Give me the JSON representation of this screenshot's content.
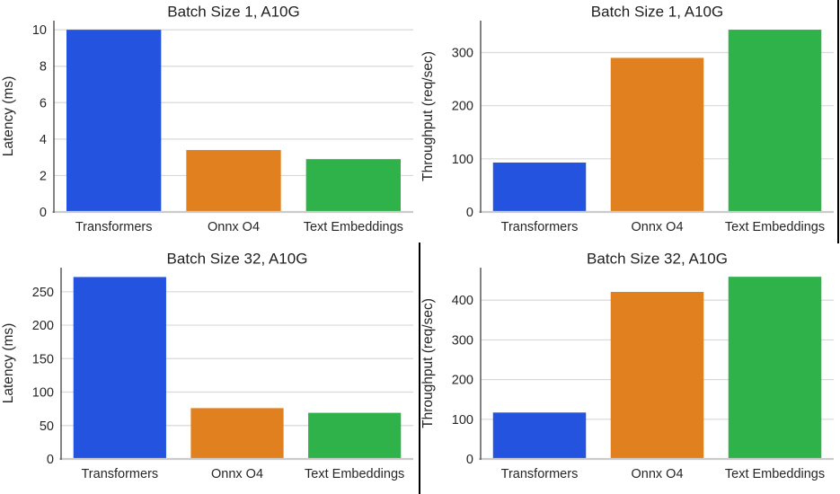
{
  "figure": {
    "categories": [
      "Transformers",
      "Onnx O4",
      "Text Embeddings"
    ],
    "palette": [
      "#2453e0",
      "#e0801f",
      "#2fb24a"
    ],
    "grid_color": "#d9d9d9",
    "baseline_color": "#cbcbcb",
    "spine_color": "#404040",
    "text_color": "#262626",
    "title_color": "#1f1f1f",
    "divider_color": "#000000"
  },
  "chart_data": [
    {
      "type": "bar",
      "title": "Batch Size 1, A10G",
      "xlabel": "",
      "ylabel": "Latency (ms)",
      "categories": [
        "Transformers",
        "Onnx O4",
        "Text Embeddings"
      ],
      "values": [
        10.0,
        3.4,
        2.9
      ],
      "yticks": [
        0,
        2,
        4,
        6,
        8,
        10
      ],
      "ylim": [
        0,
        10.5
      ],
      "grid": true,
      "legend": "none",
      "position": "top-left"
    },
    {
      "type": "bar",
      "title": "Batch Size 1, A10G",
      "xlabel": "",
      "ylabel": "Throughput (req/sec)",
      "categories": [
        "Transformers",
        "Onnx O4",
        "Text Embeddings"
      ],
      "values": [
        93,
        290,
        343
      ],
      "yticks": [
        0,
        100,
        200,
        300
      ],
      "ylim": [
        0,
        360
      ],
      "grid": true,
      "legend": "none",
      "position": "top-right"
    },
    {
      "type": "bar",
      "title": "Batch Size 32, A10G",
      "xlabel": "",
      "ylabel": "Latency (ms)",
      "categories": [
        "Transformers",
        "Onnx O4",
        "Text Embeddings"
      ],
      "values": [
        272,
        76,
        69
      ],
      "yticks": [
        0,
        50,
        100,
        150,
        200,
        250
      ],
      "ylim": [
        0,
        286
      ],
      "grid": true,
      "legend": "none",
      "position": "bottom-left"
    },
    {
      "type": "bar",
      "title": "Batch Size 32, A10G",
      "xlabel": "",
      "ylabel": "Throughput (req/sec)",
      "categories": [
        "Transformers",
        "Onnx O4",
        "Text Embeddings"
      ],
      "values": [
        117,
        421,
        459
      ],
      "yticks": [
        0,
        100,
        200,
        300,
        400
      ],
      "ylim": [
        0,
        482
      ],
      "grid": true,
      "legend": "none",
      "position": "bottom-right"
    }
  ]
}
